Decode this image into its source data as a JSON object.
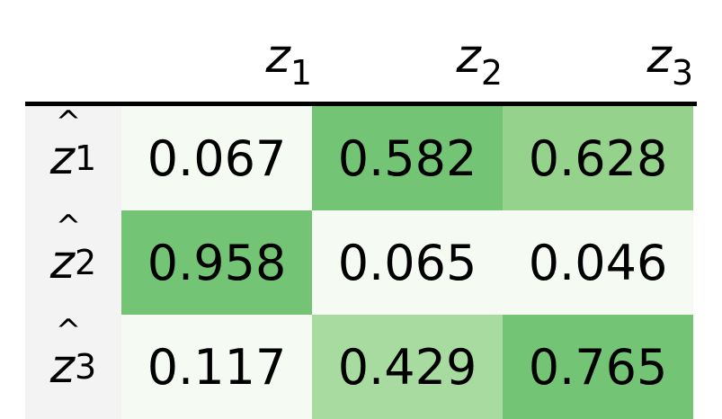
{
  "chart_data": {
    "type": "heatmap",
    "columns": [
      {
        "base": "z",
        "sub": "1"
      },
      {
        "base": "z",
        "sub": "2"
      },
      {
        "base": "z",
        "sub": "3"
      }
    ],
    "rows": [
      {
        "base": "z",
        "sub": "1",
        "values": [
          "0.067",
          "0.582",
          "0.628"
        ]
      },
      {
        "base": "z",
        "sub": "2",
        "values": [
          "0.958",
          "0.065",
          "0.046"
        ]
      },
      {
        "base": "z",
        "sub": "3",
        "values": [
          "0.117",
          "0.429",
          "0.765"
        ]
      }
    ],
    "colors": {
      "row_label_bg": "#f3f3f3",
      "scale": [
        {
          "max": 0.2,
          "color": "#f5faf2"
        },
        {
          "max": 0.5,
          "color": "#a8dba0"
        },
        {
          "max": 0.7,
          "color": "#95d28c"
        },
        {
          "max": 1.0,
          "color": "#74c476"
        }
      ],
      "cell_overrides": {
        "0-1": "#74c476"
      }
    }
  }
}
